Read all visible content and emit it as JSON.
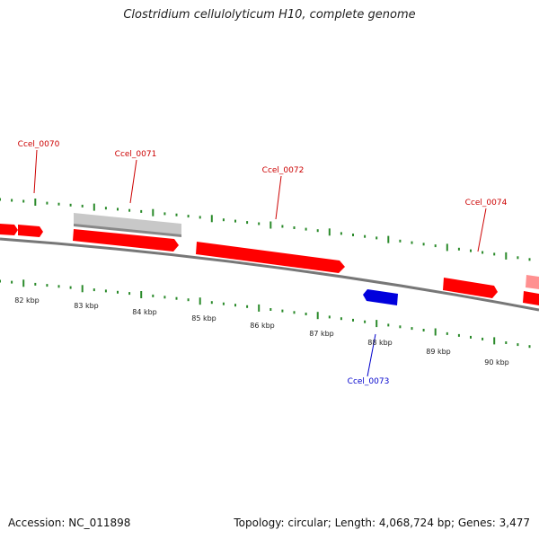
{
  "title": "Clostridium cellulolyticum H10, complete genome",
  "footer": {
    "accession": "Accession: NC_011898",
    "stats": "Topology: circular; Length: 4,068,724 bp; Genes: 3,477"
  },
  "genes": [
    {
      "id": "Ccel_0070",
      "label": "Ccel_0070",
      "color": "#cc0000",
      "strand": "+"
    },
    {
      "id": "Ccel_0071",
      "label": "Ccel_0071",
      "color": "#cc0000",
      "strand": "+"
    },
    {
      "id": "Ccel_0072",
      "label": "Ccel_0072",
      "color": "#cc0000",
      "strand": "+"
    },
    {
      "id": "Ccel_0073",
      "label": "Ccel_0073",
      "color": "#0000cc",
      "strand": "-"
    },
    {
      "id": "Ccel_0074",
      "label": "Ccel_0074",
      "color": "#cc0000",
      "strand": "+"
    }
  ],
  "kbp_ticks": [
    "82 kbp",
    "83 kbp",
    "84 kbp",
    "85 kbp",
    "86 kbp",
    "87 kbp",
    "88 kbp",
    "89 kbp",
    "90 kbp"
  ],
  "colors": {
    "forward_gene": "#ff0000",
    "reverse_gene": "#0000dd",
    "pseudo_gene": "#c8c8c8",
    "backbone": "#777777",
    "tick": "#2a8a2a"
  }
}
